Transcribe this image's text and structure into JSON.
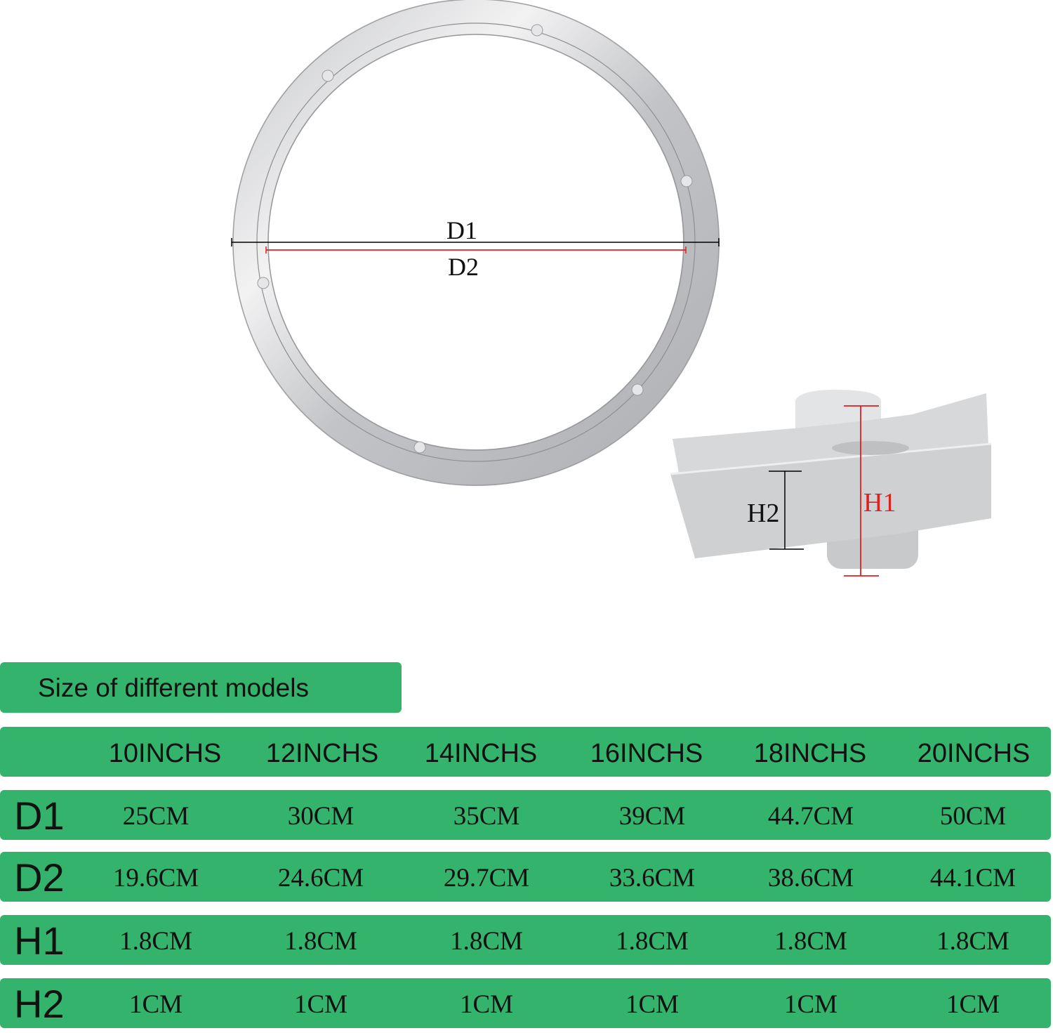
{
  "diagram": {
    "d1_label": "D1",
    "d2_label": "D2",
    "h1_label": "H1",
    "h2_label": "H2",
    "colors": {
      "d1_line": "#000000",
      "d2_line": "#e02020",
      "h1_line": "#e02020",
      "h2_line": "#000000"
    }
  },
  "table": {
    "title": "Size of different models",
    "accent_color": "#34b36c",
    "columns": [
      "10INCHS",
      "12INCHS",
      "14INCHS",
      "16INCHS",
      "18INCHS",
      "20INCHS"
    ],
    "rows": [
      {
        "label": "D1",
        "values": [
          "25CM",
          "30CM",
          "35CM",
          "39CM",
          "44.7CM",
          "50CM"
        ]
      },
      {
        "label": "D2",
        "values": [
          "19.6CM",
          "24.6CM",
          "29.7CM",
          "33.6CM",
          "38.6CM",
          "44.1CM"
        ]
      },
      {
        "label": "H1",
        "values": [
          "1.8CM",
          "1.8CM",
          "1.8CM",
          "1.8CM",
          "1.8CM",
          "1.8CM"
        ]
      },
      {
        "label": "H2",
        "values": [
          "1CM",
          "1CM",
          "1CM",
          "1CM",
          "1CM",
          "1CM"
        ]
      }
    ]
  }
}
